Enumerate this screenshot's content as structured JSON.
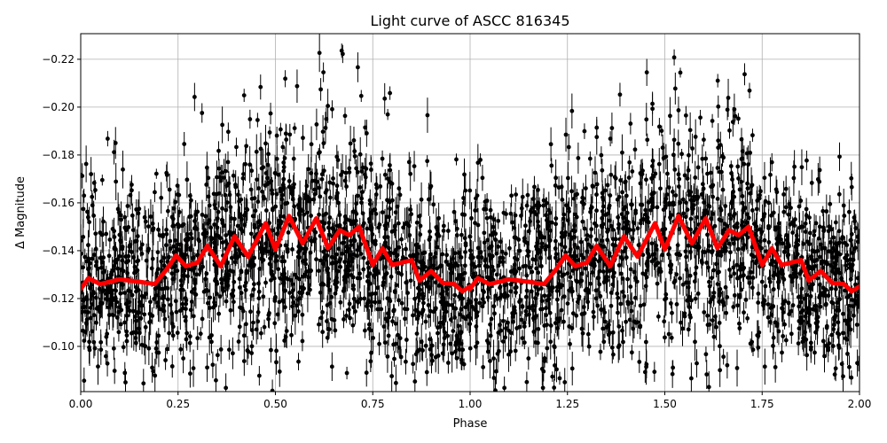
{
  "chart_data": {
    "type": "scatter",
    "title": "Light curve of ASCC 816345",
    "xlabel": "Phase",
    "ylabel": "Δ Magnitude",
    "xlim": [
      0,
      2
    ],
    "ylim": [
      -0.0811,
      -0.2307
    ],
    "y_inverted": true,
    "grid": true,
    "x_ticks": [
      "0.00",
      "0.25",
      "0.50",
      "0.75",
      "1.00",
      "1.25",
      "1.50",
      "1.75",
      "2.00"
    ],
    "y_ticks": [
      "−0.10",
      "−0.12",
      "−0.14",
      "−0.16",
      "−0.18",
      "−0.20",
      "−0.22"
    ],
    "scatter_series": {
      "color": "#000000",
      "marker": "circle with error bar",
      "spread_around_curve_mag": 0.02
    },
    "binned_curve": {
      "color": "#ff0000",
      "period_repeats": true,
      "phase": [
        0.0,
        0.02,
        0.05,
        0.1,
        0.15,
        0.19,
        0.22,
        0.245,
        0.27,
        0.3,
        0.325,
        0.36,
        0.395,
        0.43,
        0.475,
        0.5,
        0.535,
        0.57,
        0.605,
        0.635,
        0.665,
        0.69,
        0.715,
        0.75,
        0.775,
        0.8,
        0.85,
        0.87,
        0.9,
        0.93,
        0.96,
        0.98,
        1.0
      ],
      "magnitude": [
        -0.124,
        -0.1285,
        -0.126,
        -0.128,
        -0.127,
        -0.126,
        -0.132,
        -0.138,
        -0.1335,
        -0.135,
        -0.142,
        -0.1335,
        -0.146,
        -0.1375,
        -0.1515,
        -0.1405,
        -0.1545,
        -0.143,
        -0.1535,
        -0.141,
        -0.1485,
        -0.1465,
        -0.15,
        -0.134,
        -0.141,
        -0.134,
        -0.136,
        -0.1275,
        -0.1315,
        -0.1265,
        -0.126,
        -0.123,
        -0.125
      ]
    }
  }
}
